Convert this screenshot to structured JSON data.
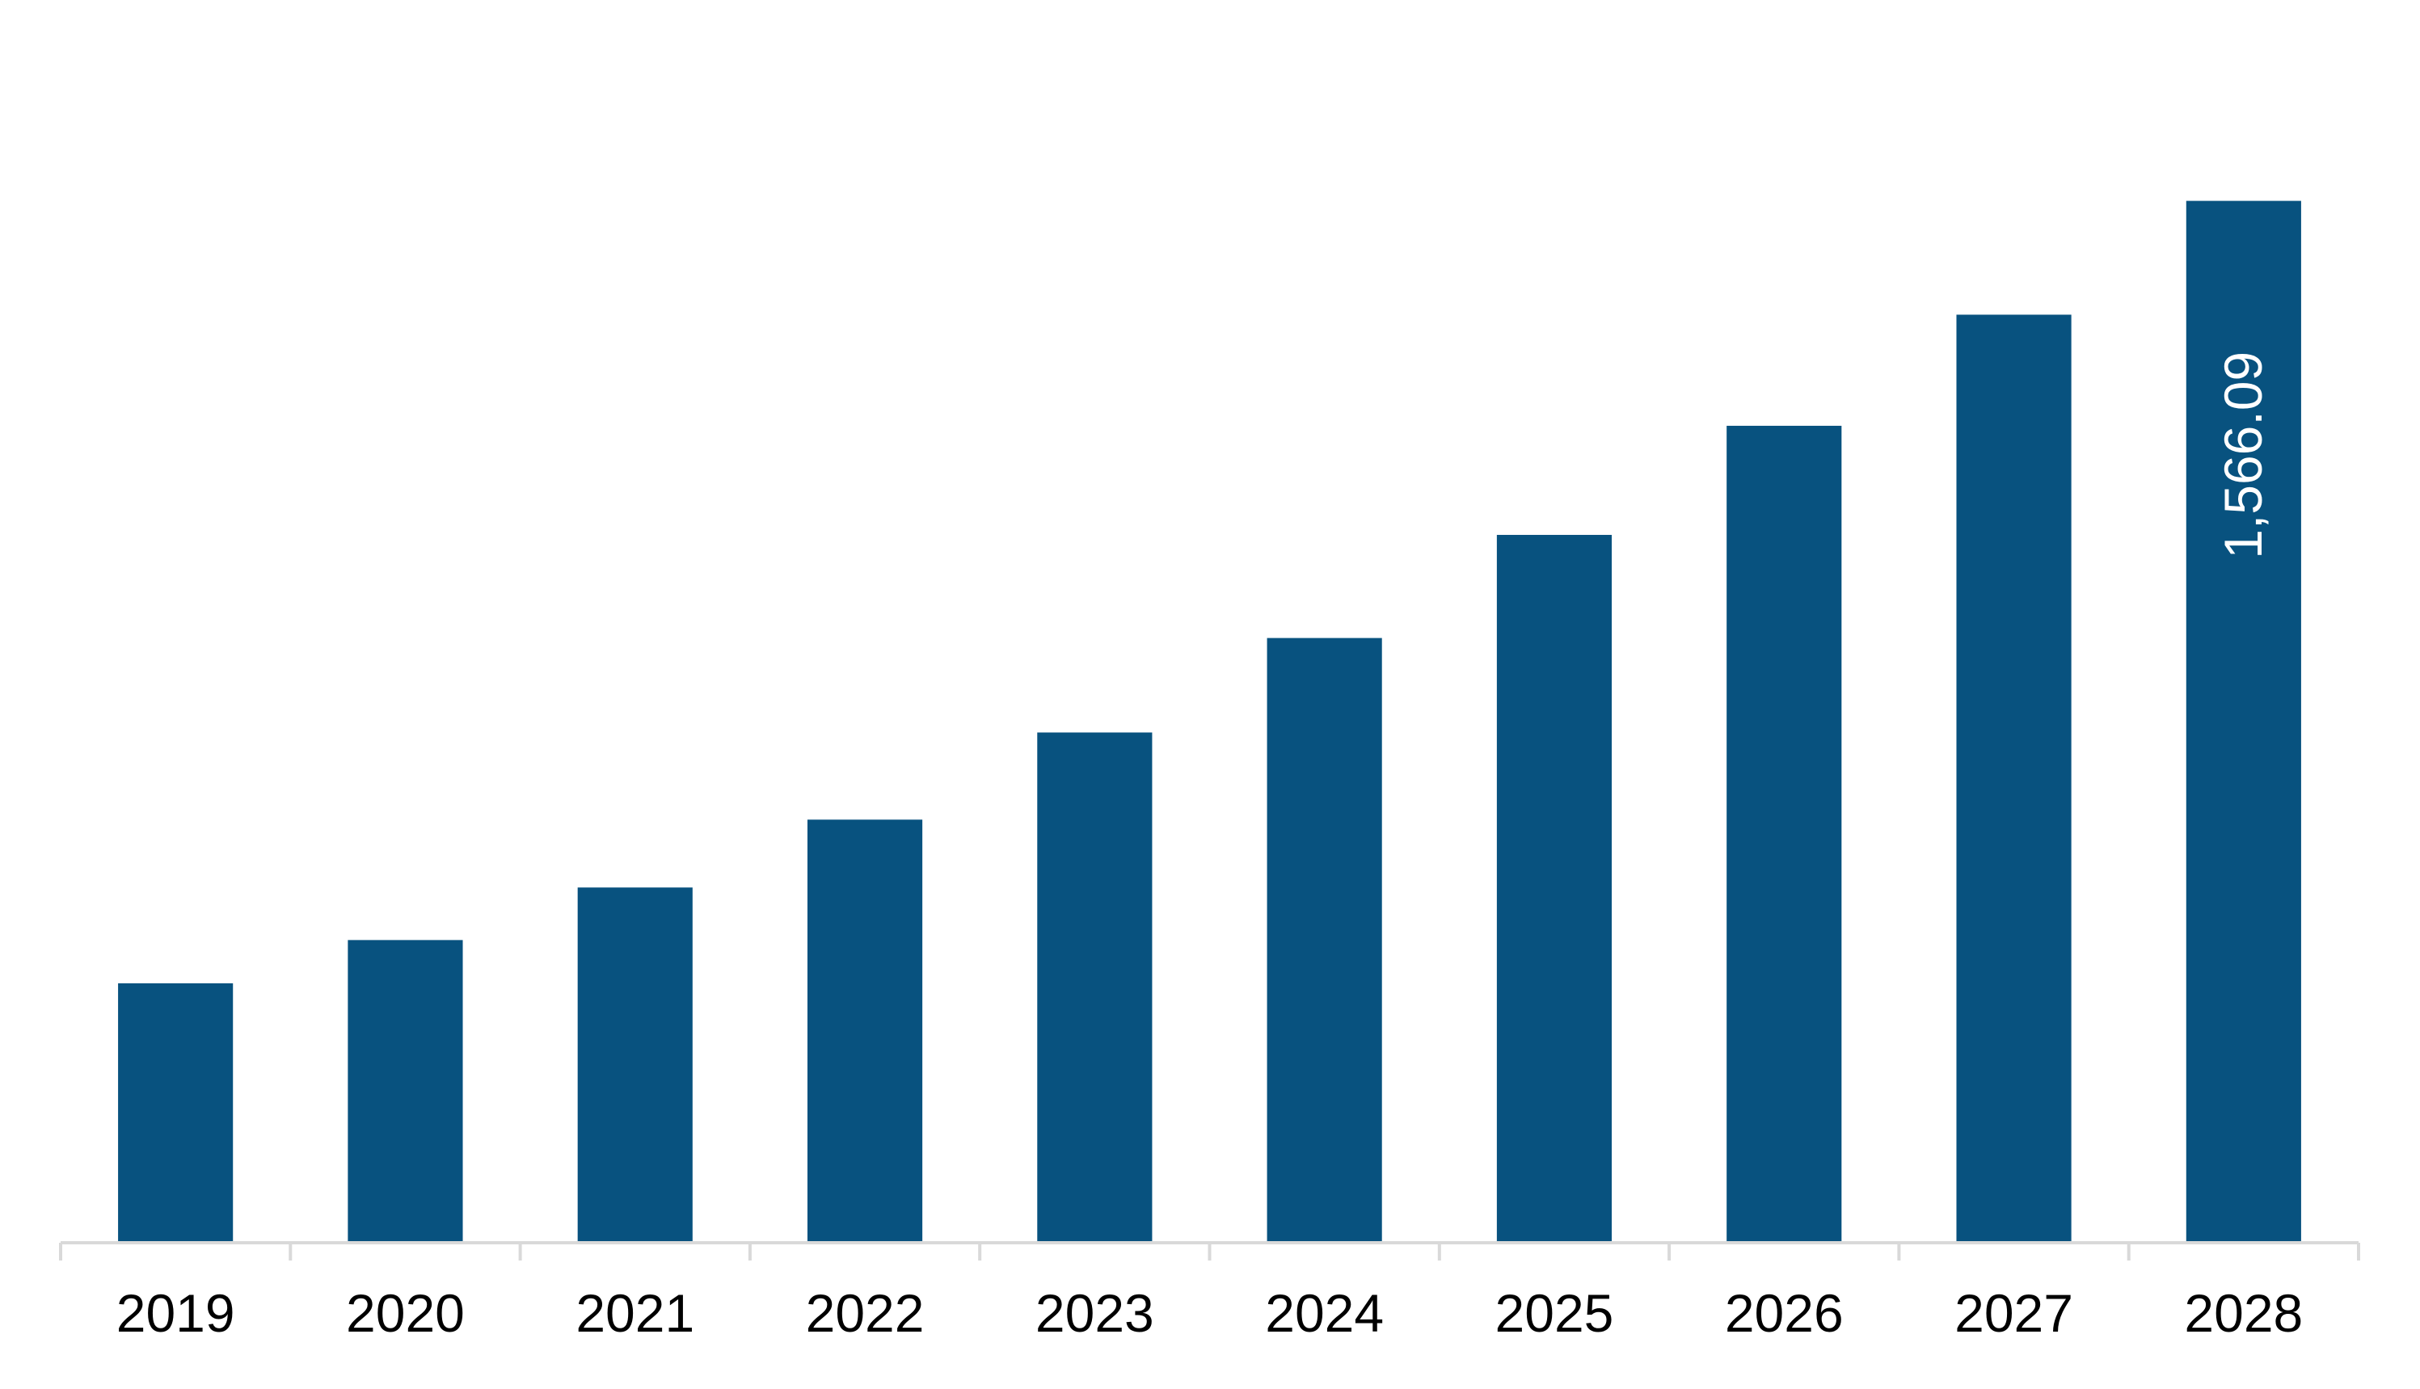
{
  "chart_data": {
    "type": "bar",
    "title": "",
    "xlabel": "",
    "ylabel": "",
    "categories": [
      "2019",
      "2020",
      "2021",
      "2022",
      "2023",
      "2024",
      "2025",
      "2026",
      "2027",
      "2028"
    ],
    "values": [
      390,
      455,
      534,
      636,
      767,
      909,
      1064,
      1228,
      1395,
      1566.09
    ],
    "data_labels": [
      "",
      "",
      "",
      "",
      "",
      "",
      "",
      "",
      "",
      "1,566.09"
    ],
    "ylim": [
      0,
      1800
    ],
    "bar_color": "#08527f",
    "axis_color": "#d9d9d9",
    "grid": false,
    "legend": "none"
  }
}
